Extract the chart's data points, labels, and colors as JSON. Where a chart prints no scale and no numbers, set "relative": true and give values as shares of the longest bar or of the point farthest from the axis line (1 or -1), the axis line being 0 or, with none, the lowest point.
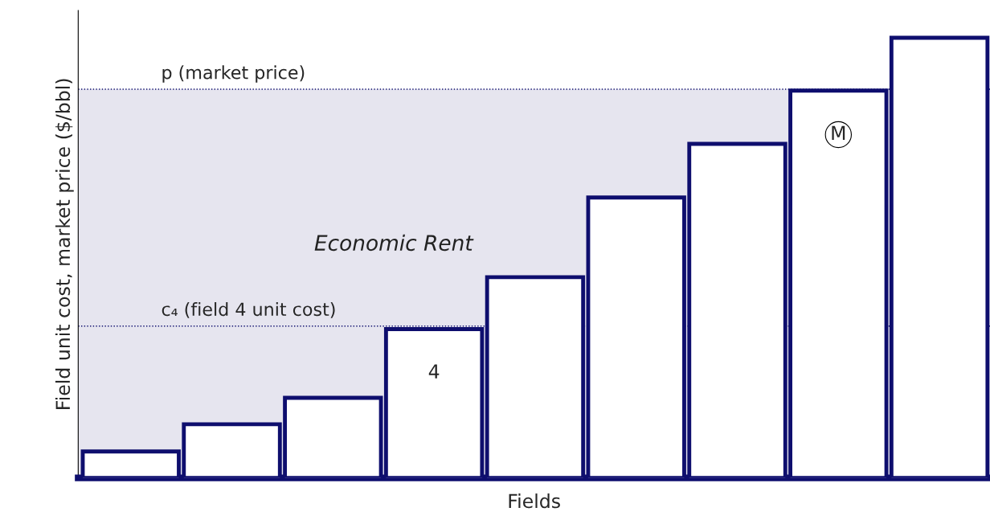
{
  "chart_data": {
    "type": "bar",
    "relative": true,
    "xlabel": "Fields",
    "ylabel": "Field unit cost, market price ($/bbl)",
    "categories": [
      null,
      null,
      null,
      null,
      null,
      null,
      null,
      null,
      null
    ],
    "values": [
      0.06,
      0.122,
      0.182,
      0.338,
      0.456,
      0.637,
      0.759,
      0.88,
      1.0
    ],
    "color": "#ffffff",
    "annotations": [
      "4",
      "M"
    ],
    "ref_lines": [
      {
        "axis": "y",
        "value": 0.883,
        "label": "p (market price)",
        "color": "#0e0e6e",
        "line_style": "dotted"
      },
      {
        "axis": "y",
        "value": 0.345,
        "label": "c₄ (field 4 unit cost)",
        "color": "#0e0e6e",
        "line_style": "dotted"
      }
    ],
    "bands": [
      {
        "axis": "y",
        "from": 0,
        "to": 0.883,
        "label": "Economic Rent",
        "color": "#e6e5ef"
      }
    ]
  }
}
